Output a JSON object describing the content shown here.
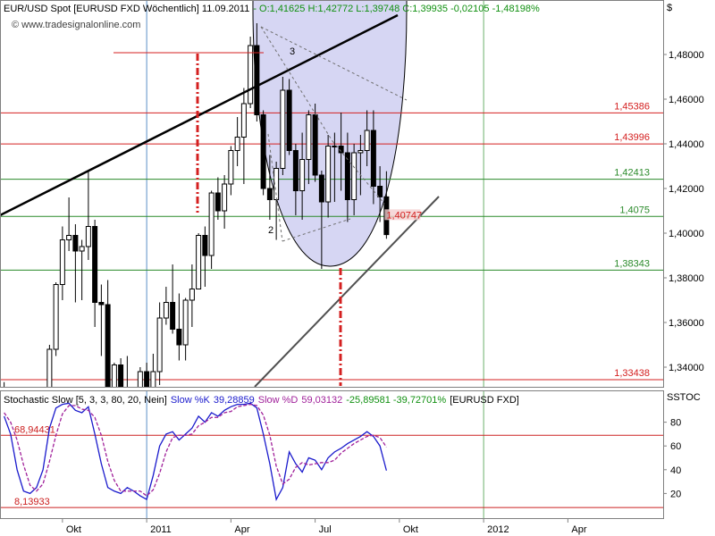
{
  "header": {
    "title": "EUR/USD Spot [EURUSD FXD  Wöchentlich] 11.09.2011",
    "quote": "- O:1,41625 H:1,42772 L:1,39748 C:1,39935 -0,02105 -1,48198%",
    "watermark": "© www.tradesignalonline.com",
    "currency": "$"
  },
  "chart_data": [
    {
      "type": "candlestick",
      "up_color": "#ffffff",
      "down_color": "#000000",
      "open": [
        1.306,
        1.327,
        1.274,
        1.271,
        1.275,
        1.29,
        1.274,
        1.305,
        1.348,
        1.377,
        1.397,
        1.399,
        1.392,
        1.394,
        1.403,
        1.369,
        1.368,
        1.323,
        1.341,
        1.325,
        1.322,
        1.308,
        1.338,
        1.291,
        1.338,
        1.362,
        1.369,
        1.357,
        1.35,
        1.37,
        1.375,
        1.399,
        1.39,
        1.418,
        1.41,
        1.422,
        1.437,
        1.443,
        1.458,
        1.484,
        1.453,
        1.42,
        1.415,
        1.429,
        1.464,
        1.437,
        1.419,
        1.433,
        1.453,
        1.426,
        1.414,
        1.439,
        1.439,
        1.436,
        1.415,
        1.436,
        1.437,
        1.446,
        1.421,
        1.41625,
        null,
        null,
        null,
        null,
        null,
        null,
        null,
        null,
        null,
        null,
        null,
        null,
        null,
        null,
        null,
        null,
        null,
        null,
        null,
        null,
        null,
        null,
        null,
        null,
        null,
        null,
        null,
        null,
        null,
        null,
        null,
        null,
        null,
        null,
        null,
        null,
        null,
        null,
        null,
        null,
        null,
        null
      ],
      "high": [
        1.3333,
        1.329,
        1.29,
        1.277,
        1.294,
        1.298,
        1.316,
        1.35,
        1.378,
        1.403,
        1.416,
        1.404,
        1.397,
        1.4282,
        1.406,
        1.377,
        1.379,
        1.342,
        1.344,
        1.345,
        1.323,
        1.34,
        1.342,
        1.346,
        1.369,
        1.376,
        1.386,
        1.373,
        1.371,
        1.386,
        1.4,
        1.403,
        1.419,
        1.425,
        1.426,
        1.439,
        1.452,
        1.465,
        1.488,
        1.494,
        1.455,
        1.435,
        1.432,
        1.47,
        1.469,
        1.44,
        1.445,
        1.455,
        1.458,
        1.428,
        1.444,
        1.445,
        1.454,
        1.445,
        1.44,
        1.444,
        1.455,
        1.455,
        1.43,
        1.42772,
        null,
        null,
        null,
        null,
        null,
        null,
        null,
        null,
        null,
        null,
        null,
        null,
        null,
        null,
        null,
        null,
        null,
        null,
        null,
        null,
        null,
        null,
        null,
        null,
        null,
        null,
        null,
        null,
        null,
        null,
        null,
        null,
        null,
        null,
        null,
        null,
        null,
        null,
        null,
        null,
        null,
        null
      ],
      "low": [
        1.303,
        1.273,
        1.266,
        1.259,
        1.265,
        1.259,
        1.274,
        1.304,
        1.345,
        1.37,
        1.392,
        1.369,
        1.37,
        1.388,
        1.358,
        1.345,
        1.322,
        1.297,
        1.317,
        1.315,
        1.304,
        1.306,
        1.29,
        1.287,
        1.332,
        1.359,
        1.355,
        1.343,
        1.343,
        1.358,
        1.375,
        1.376,
        1.384,
        1.406,
        1.402,
        1.417,
        1.43,
        1.422,
        1.456,
        1.45,
        1.417,
        1.406,
        1.397,
        1.426,
        1.435,
        1.408,
        1.406,
        1.422,
        1.423,
        1.384,
        1.407,
        1.414,
        1.419,
        1.405,
        1.408,
        1.417,
        1.43,
        1.413,
        1.405,
        1.39748,
        null,
        null,
        null,
        null,
        null,
        null,
        null,
        null,
        null,
        null,
        null,
        null,
        null,
        null,
        null,
        null,
        null,
        null,
        null,
        null,
        null,
        null,
        null,
        null,
        null,
        null,
        null,
        null,
        null,
        null,
        null,
        null,
        null,
        null,
        null,
        null,
        null,
        null,
        null,
        null,
        null,
        null
      ],
      "close": [
        1.327,
        1.274,
        1.271,
        1.275,
        1.29,
        1.274,
        1.305,
        1.348,
        1.377,
        1.397,
        1.399,
        1.392,
        1.394,
        1.403,
        1.369,
        1.368,
        1.323,
        1.341,
        1.325,
        1.322,
        1.308,
        1.338,
        1.291,
        1.338,
        1.362,
        1.369,
        1.357,
        1.35,
        1.37,
        1.375,
        1.399,
        1.39,
        1.418,
        1.41,
        1.422,
        1.437,
        1.443,
        1.458,
        1.484,
        1.453,
        1.42,
        1.415,
        1.429,
        1.464,
        1.437,
        1.419,
        1.433,
        1.453,
        1.426,
        1.414,
        1.439,
        1.439,
        1.436,
        1.415,
        1.436,
        1.437,
        1.446,
        1.421,
        1.41625,
        1.39935,
        null,
        null,
        null,
        null,
        null,
        null,
        null,
        null,
        null,
        null,
        null,
        null,
        null,
        null,
        null,
        null,
        null,
        null,
        null,
        null,
        null,
        null,
        null,
        null,
        null,
        null,
        null,
        null,
        null,
        null,
        null,
        null,
        null,
        null,
        null,
        null,
        null,
        null,
        null,
        null,
        null,
        null
      ],
      "ylim": [
        1.3312,
        1.5044
      ],
      "yticks": [
        {
          "value": 1.34,
          "label": "1,34000"
        },
        {
          "value": 1.36,
          "label": "1,36000"
        },
        {
          "value": 1.38,
          "label": "1,38000"
        },
        {
          "value": 1.4,
          "label": "1,40000"
        },
        {
          "value": 1.42,
          "label": "1,42000"
        },
        {
          "value": 1.44,
          "label": "1,44000"
        },
        {
          "value": 1.46,
          "label": "1,46000"
        },
        {
          "value": 1.48,
          "label": "1,48000"
        }
      ],
      "grid": false,
      "levels": [
        {
          "value": 1.45386,
          "label": "1,45386",
          "color": "#d42020"
        },
        {
          "value": 1.43996,
          "label": "1,43996",
          "color": "#d42020"
        },
        {
          "value": 1.42413,
          "label": "1,42413",
          "color": "#2a8a2a"
        },
        {
          "value": 1.4075,
          "label": "1,4075",
          "color": "#2a8a2a"
        },
        {
          "value": 1.38343,
          "label": "1,38343",
          "color": "#2a8a2a"
        },
        {
          "value": 1.33438,
          "label": "1,33438",
          "color": "#d42020"
        }
      ],
      "price_tag": {
        "value": 1.40747,
        "label": "1,40747",
        "color": "#d42020"
      },
      "annotations": [
        "3",
        "2"
      ]
    },
    {
      "type": "line",
      "title": "Stochastic Slow [5, 3, 3, 80, 20, Nein]",
      "change": "-25,89581 -39,72701%",
      "symbol": "[EURUSD FXD]",
      "axis_label": "SSTOC",
      "categories": [
        null,
        null,
        null,
        null,
        null,
        null,
        null,
        null,
        null,
        "Okt",
        null,
        null,
        null,
        null,
        null,
        null,
        null,
        null,
        null,
        null,
        null,
        null,
        "2011",
        null,
        null,
        null,
        null,
        null,
        null,
        null,
        null,
        null,
        null,
        null,
        null,
        "Apr",
        null,
        null,
        null,
        null,
        null,
        null,
        null,
        null,
        null,
        null,
        null,
        null,
        "Jul",
        null,
        null,
        null,
        null,
        null,
        null,
        null,
        null,
        null,
        null,
        null,
        null,
        "Okt",
        null,
        null,
        null,
        null,
        null,
        null,
        null,
        null,
        null,
        null,
        null,
        null,
        "2012",
        null,
        null,
        null,
        null,
        null,
        null,
        null,
        null,
        null,
        null,
        null,
        null,
        "Apr",
        null,
        null,
        null,
        null,
        null,
        null,
        null,
        null,
        null,
        null,
        null,
        null,
        null,
        null
      ],
      "series": [
        {
          "name": "Slow %K",
          "header_value": "39,28859",
          "color": "#1a1acc",
          "dashed": false,
          "values": [
            85,
            70,
            40,
            22,
            20,
            25,
            40,
            75,
            92,
            95,
            96,
            90,
            88,
            93,
            70,
            45,
            25,
            22,
            20,
            25,
            22,
            18,
            15,
            35,
            60,
            70,
            72,
            65,
            70,
            75,
            85,
            80,
            88,
            85,
            90,
            93,
            95,
            95,
            96,
            92,
            70,
            45,
            15,
            25,
            55,
            45,
            38,
            50,
            48,
            40,
            50,
            55,
            58,
            62,
            65,
            68,
            72,
            68,
            60,
            39.28859,
            null,
            null,
            null,
            null,
            null,
            null,
            null,
            null,
            null,
            null,
            null,
            null,
            null,
            null,
            null,
            null,
            null,
            null,
            null,
            null,
            null,
            null,
            null,
            null,
            null,
            null,
            null,
            null,
            null,
            null,
            null,
            null,
            null,
            null,
            null,
            null,
            null,
            null,
            null,
            null,
            null,
            null
          ]
        },
        {
          "name": "Slow %D",
          "header_value": "59,03132",
          "color": "#a0209a",
          "dashed": true,
          "values": [
            88,
            80,
            65,
            44,
            27,
            22,
            28,
            47,
            69,
            87,
            94,
            94,
            91,
            90,
            84,
            69,
            47,
            31,
            22,
            22,
            22,
            22,
            18,
            23,
            37,
            55,
            67,
            69,
            69,
            70,
            77,
            80,
            84,
            84,
            88,
            89,
            93,
            94,
            95,
            94,
            86,
            69,
            43,
            28,
            32,
            42,
            46,
            44,
            45,
            46,
            46,
            48,
            54,
            58,
            62,
            65,
            68,
            69,
            67,
            59.03132,
            null,
            null,
            null,
            null,
            null,
            null,
            null,
            null,
            null,
            null,
            null,
            null,
            null,
            null,
            null,
            null,
            null,
            null,
            null,
            null,
            null,
            null,
            null,
            null,
            null,
            null,
            null,
            null,
            null,
            null,
            null,
            null,
            null,
            null,
            null,
            null,
            null,
            null,
            null,
            null,
            null,
            null
          ]
        }
      ],
      "ylim": [
        0,
        100
      ],
      "yticks": [
        20,
        40,
        60,
        80
      ],
      "grid": false,
      "levels": [
        {
          "value": 68.94431,
          "label": "68,94431",
          "color": "#cc2020"
        },
        {
          "value": 8.13933,
          "label": "8,13933",
          "color": "#cc2020"
        }
      ]
    }
  ]
}
